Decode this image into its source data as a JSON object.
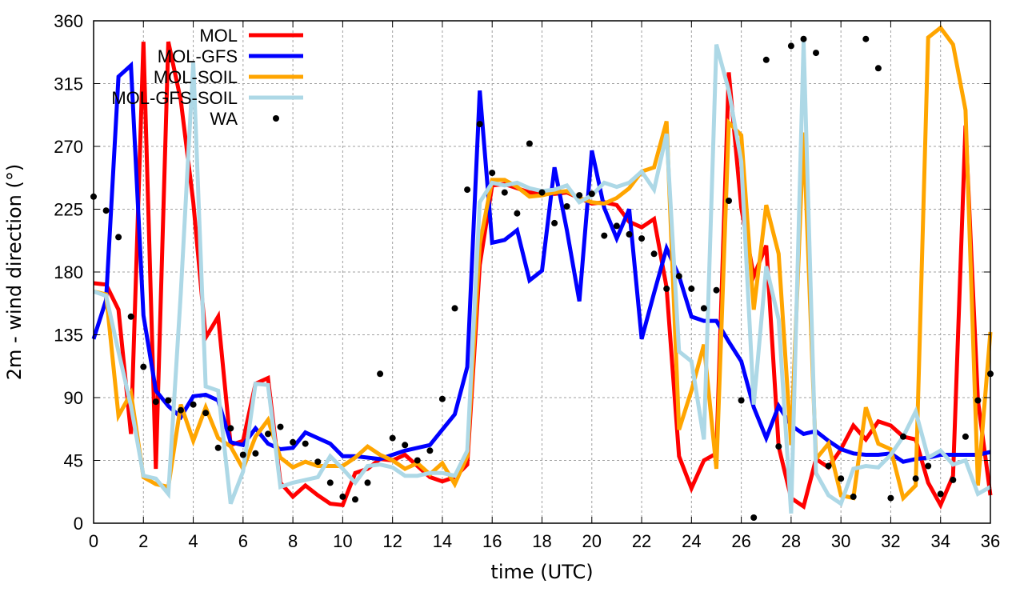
{
  "chart_data": {
    "type": "line",
    "title": "",
    "xlabel": "time (UTC)",
    "ylabel": "2m - wind direction (°)",
    "xlim": [
      0,
      36
    ],
    "ylim": [
      0,
      360
    ],
    "xticks": [
      "0",
      "2",
      "4",
      "6",
      "8",
      "10",
      "12",
      "14",
      "16",
      "18",
      "20",
      "22",
      "24",
      "26",
      "28",
      "30",
      "32",
      "34",
      "36"
    ],
    "yticks": [
      "0",
      "45",
      "90",
      "135",
      "180",
      "225",
      "270",
      "315",
      "360"
    ],
    "grid": true,
    "legend_position": "top-left",
    "x": [
      0,
      0.5,
      1,
      1.5,
      2,
      2.5,
      3,
      3.5,
      4,
      4.5,
      5,
      5.5,
      6,
      6.5,
      7,
      7.5,
      8,
      8.5,
      9,
      9.5,
      10,
      10.5,
      11,
      11.5,
      12,
      12.5,
      13,
      13.5,
      14,
      14.5,
      15,
      15.5,
      16,
      16.5,
      17,
      17.5,
      18,
      18.5,
      19,
      19.5,
      20,
      20.5,
      21,
      21.5,
      22,
      22.5,
      23,
      23.5,
      24,
      24.5,
      25,
      25.5,
      26,
      26.5,
      27,
      27.5,
      28,
      28.5,
      29,
      29.5,
      30,
      30.5,
      31,
      31.5,
      32,
      32.5,
      33,
      33.5,
      34,
      34.5,
      35,
      35.5,
      36
    ],
    "series": [
      {
        "name": "MOL",
        "style": "line",
        "color": "#ff0000",
        "values": [
          172,
          171,
          153,
          64,
          345,
          39,
          345,
          303,
          230,
          133,
          148,
          56,
          59,
          100,
          104,
          29,
          19,
          27,
          20,
          14,
          13,
          36,
          39,
          46,
          45,
          49,
          41,
          33,
          30,
          33,
          42,
          185,
          242,
          243,
          240,
          237,
          237,
          236,
          237,
          233,
          229,
          230,
          228,
          216,
          212,
          218,
          169,
          48,
          25,
          45,
          50,
          323,
          226,
          177,
          199,
          55,
          18,
          12,
          46,
          40,
          53,
          70,
          60,
          73,
          70,
          62,
          60,
          29,
          13,
          34,
          285,
          88,
          20
        ]
      },
      {
        "name": "MOL-GFS",
        "style": "line",
        "color": "#0000ff",
        "values": [
          132,
          160,
          320,
          328,
          149,
          95,
          84,
          76,
          91,
          92,
          88,
          58,
          56,
          68,
          57,
          53,
          54,
          65,
          61,
          57,
          48,
          48,
          47,
          46,
          49,
          52,
          54,
          56,
          67,
          78,
          112,
          310,
          201,
          203,
          210,
          174,
          181,
          255,
          210,
          159,
          267,
          226,
          204,
          225,
          132,
          165,
          197,
          177,
          148,
          145,
          145,
          130,
          116,
          83,
          61,
          84,
          70,
          64,
          66,
          59,
          53,
          50,
          49,
          49,
          50,
          44,
          46,
          47,
          49,
          49,
          49,
          49,
          51
        ]
      },
      {
        "name": "MOL-SOIL",
        "style": "line",
        "color": "#ffa500",
        "values": [
          166,
          164,
          77,
          93,
          33,
          28,
          26,
          85,
          59,
          83,
          61,
          55,
          39,
          62,
          74,
          47,
          40,
          44,
          41,
          41,
          41,
          47,
          55,
          49,
          45,
          39,
          43,
          35,
          43,
          28,
          48,
          200,
          246,
          246,
          241,
          234,
          235,
          237,
          238,
          233,
          230,
          229,
          233,
          240,
          252,
          255,
          288,
          67,
          95,
          128,
          39,
          287,
          278,
          153,
          228,
          193,
          56,
          280,
          46,
          57,
          20,
          18,
          83,
          57,
          53,
          18,
          27,
          348,
          355,
          343,
          296,
          27,
          137
        ]
      },
      {
        "name": "MOL-GFS-SOIL",
        "style": "line",
        "color": "#add8e6",
        "values": [
          166,
          163,
          123,
          84,
          34,
          32,
          21,
          165,
          330,
          98,
          95,
          14,
          37,
          100,
          99,
          26,
          29,
          31,
          33,
          48,
          39,
          29,
          41,
          42,
          40,
          34,
          34,
          36,
          36,
          34,
          52,
          230,
          244,
          242,
          244,
          240,
          238,
          239,
          242,
          230,
          235,
          244,
          241,
          244,
          252,
          239,
          279,
          123,
          116,
          60,
          343,
          310,
          259,
          85,
          184,
          146,
          7,
          345,
          36,
          20,
          14,
          39,
          41,
          40,
          49,
          62,
          80,
          47,
          52,
          42,
          45,
          21,
          26
        ]
      },
      {
        "name": "WA",
        "style": "points",
        "color": "#000000",
        "values": [
          234,
          224,
          205,
          148,
          112,
          87,
          88,
          81,
          85,
          79,
          54,
          68,
          49,
          50,
          64,
          69,
          58,
          57,
          44,
          29,
          19,
          17,
          29,
          107,
          61,
          56,
          45,
          52,
          89,
          154,
          239,
          286,
          251,
          237,
          222,
          272,
          237,
          215,
          227,
          235,
          236,
          206,
          213,
          207,
          204,
          193,
          168,
          177,
          168,
          154,
          167,
          231,
          88,
          4,
          332,
          55,
          342,
          347,
          337,
          41,
          32,
          19,
          347,
          326,
          18,
          62,
          32,
          41,
          21,
          31,
          62,
          88,
          107
        ]
      }
    ]
  }
}
